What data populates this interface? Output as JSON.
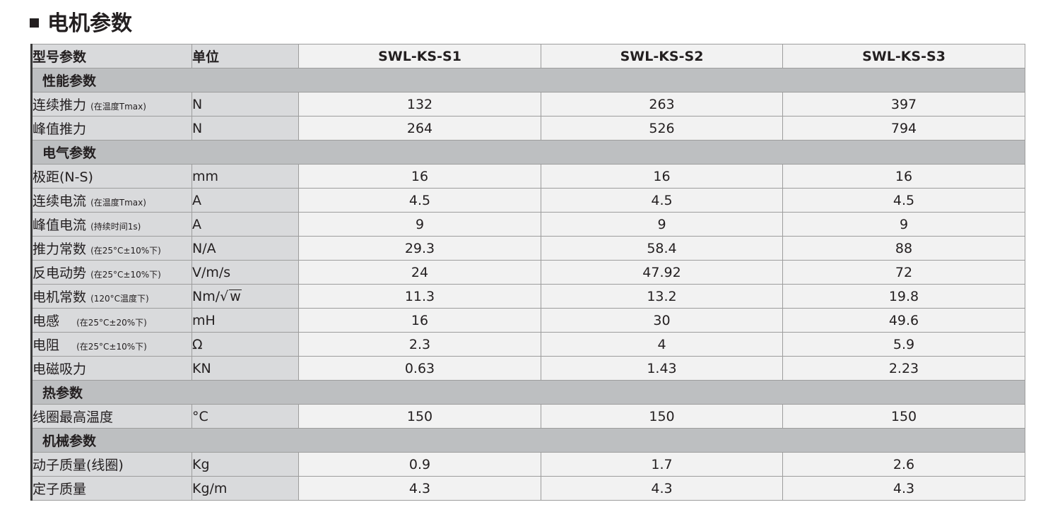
{
  "page": {
    "title": "电机参数"
  },
  "table": {
    "header": {
      "name": "型号参数",
      "unit": "单位",
      "models": [
        "SWL-KS-S1",
        "SWL-KS-S2",
        "SWL-KS-S3"
      ]
    },
    "sections": [
      {
        "title": "性能参数",
        "rows": [
          {
            "name": "连续推力",
            "note": "(在温度Tmax)",
            "unit": "N",
            "values": [
              "132",
              "263",
              "397"
            ]
          },
          {
            "name": "峰值推力",
            "note": "",
            "unit": "N",
            "values": [
              "264",
              "526",
              "794"
            ]
          }
        ]
      },
      {
        "title": "电气参数",
        "rows": [
          {
            "name": "极距(N-S)",
            "note": "",
            "unit": "mm",
            "values": [
              "16",
              "16",
              "16"
            ]
          },
          {
            "name": "连续电流",
            "note": "(在温度Tmax)",
            "unit": "A",
            "values": [
              "4.5",
              "4.5",
              "4.5"
            ]
          },
          {
            "name": "峰值电流",
            "note": "(持续时间1s)",
            "unit": "A",
            "values": [
              "9",
              "9",
              "9"
            ]
          },
          {
            "name": "推力常数",
            "note": "(在25°C±10%下)",
            "unit": "N/A",
            "values": [
              "29.3",
              "58.4",
              "88"
            ]
          },
          {
            "name": "反电动势",
            "note": "(在25°C±10%下)",
            "unit": "V/m/s",
            "values": [
              "24",
              "47.92",
              "72"
            ]
          },
          {
            "name": "电机常数",
            "note": "(120°C温度下)",
            "unit": "Nm/",
            "unit_sqrt": "w",
            "values": [
              "11.3",
              "13.2",
              "19.8"
            ]
          },
          {
            "name": "电感",
            "note": "(在25°C±20%下)",
            "note_gap": true,
            "unit": "mH",
            "values": [
              "16",
              "30",
              "49.6"
            ]
          },
          {
            "name": "电阻",
            "note": "(在25°C±10%下)",
            "note_gap": true,
            "unit": "Ω",
            "values": [
              "2.3",
              "4",
              "5.9"
            ]
          },
          {
            "name": "电磁吸力",
            "note": "",
            "unit": "KN",
            "values": [
              "0.63",
              "1.43",
              "2.23"
            ]
          }
        ]
      },
      {
        "title": "热参数",
        "rows": [
          {
            "name": "线圈最高温度",
            "note": "",
            "unit": "°C",
            "values": [
              "150",
              "150",
              "150"
            ]
          }
        ]
      },
      {
        "title": "机械参数",
        "rows": [
          {
            "name": "动子质量(线圈)",
            "note": "",
            "unit": "Kg",
            "values": [
              "0.9",
              "1.7",
              "2.6"
            ]
          },
          {
            "name": "定子质量",
            "note": "",
            "unit": "Kg/m",
            "values": [
              "4.3",
              "4.3",
              "4.3"
            ]
          }
        ]
      }
    ]
  }
}
